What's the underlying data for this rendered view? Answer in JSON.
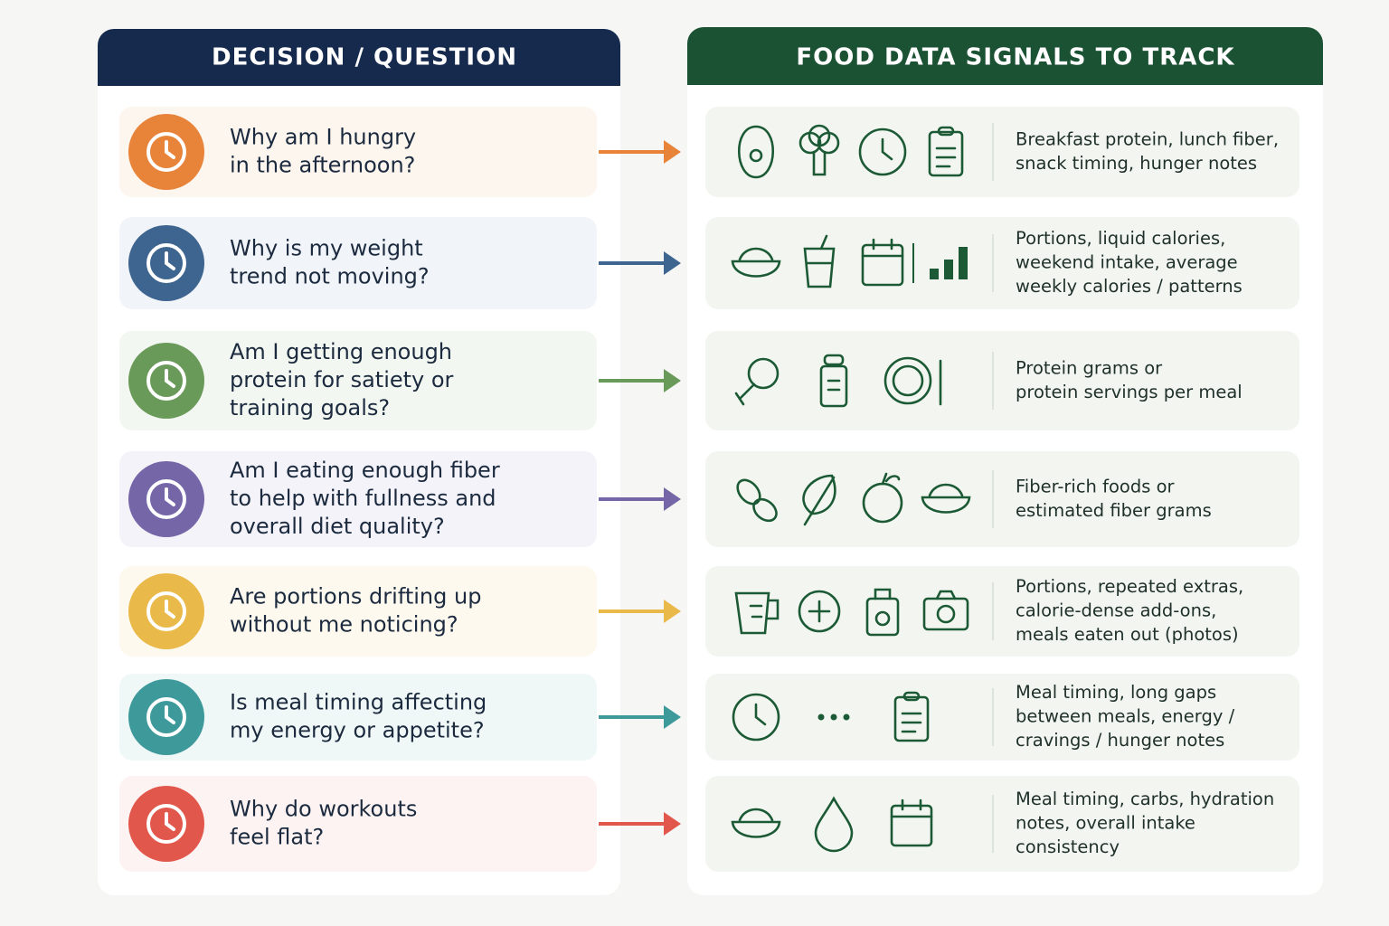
{
  "left_header": "DECISION / QUESTION",
  "right_header": "FOOD DATA SIGNALS TO TRACK",
  "rows": [
    {
      "question": [
        "Why am I hungry",
        "in the afternoon?"
      ],
      "signals": [
        "Breakfast protein, lunch fiber,",
        "snack timing, hunger notes"
      ]
    },
    {
      "question": [
        "Why is my weight",
        "trend not moving?"
      ],
      "signals": [
        "Portions, liquid calories,",
        "weekend intake, average",
        "weekly calories / patterns"
      ]
    },
    {
      "question": [
        "Am I getting enough",
        "protein for satiety or",
        "training goals?"
      ],
      "signals": [
        "Protein grams or",
        "protein servings per meal"
      ]
    },
    {
      "question": [
        "Am I eating enough fiber",
        "to help with fullness and",
        "overall diet quality?"
      ],
      "signals": [
        "Fiber-rich foods or",
        "estimated fiber grams"
      ]
    },
    {
      "question": [
        "Are portions drifting up",
        "without me noticing?"
      ],
      "signals": [
        "Portions, repeated extras,",
        "calorie-dense add-ons,",
        "meals eaten out (photos)"
      ]
    },
    {
      "question": [
        "Is meal timing affecting",
        "my energy or appetite?"
      ],
      "signals": [
        "Meal timing, long gaps",
        "between meals, energy /",
        "cravings / hunger notes"
      ]
    },
    {
      "question": [
        "Why do workouts",
        "feel flat?"
      ],
      "signals": [
        "Meal timing, carbs, hydration",
        "notes, overall intake",
        "consistency"
      ]
    }
  ]
}
